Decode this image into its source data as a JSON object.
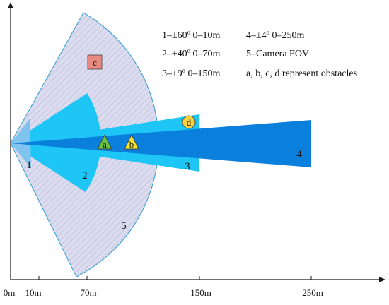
{
  "colors": {
    "camera_fill": "#dcdcf0",
    "camera_stroke": "#2f9bd0",
    "camera_hatch": "#c4c4dc",
    "radar_light": "#1ec6f5",
    "radar_dark": "#0a7fdb",
    "short_range": "#7fc4ee",
    "obstacle_c": "#e88a80",
    "obstacle_ab": "#6cbf3c",
    "obstacle_b": "#f2e62c",
    "obstacle_d": "#f7d23c",
    "axis": "#1a1a1a"
  },
  "legend": {
    "row1_left": "1–±60º 0–10m",
    "row1_right": "4–±4º 0–250m",
    "row2_left": "2–±40º 0–70m",
    "row2_right": "5–Camera FOV",
    "row3_left": "3–±9º 0–150m",
    "row3_right": "a, b, c, d represent obstacles"
  },
  "zones": {
    "z1": "1",
    "z2": "2",
    "z3": "3",
    "z4": "4",
    "z5": "5"
  },
  "obstacles": {
    "a": "a",
    "b": "b",
    "c": "c",
    "d": "d"
  },
  "axis_ticks": {
    "t0": "0m",
    "t10": "10m",
    "t70": "70m",
    "t150": "150m",
    "t250": "250m"
  }
}
